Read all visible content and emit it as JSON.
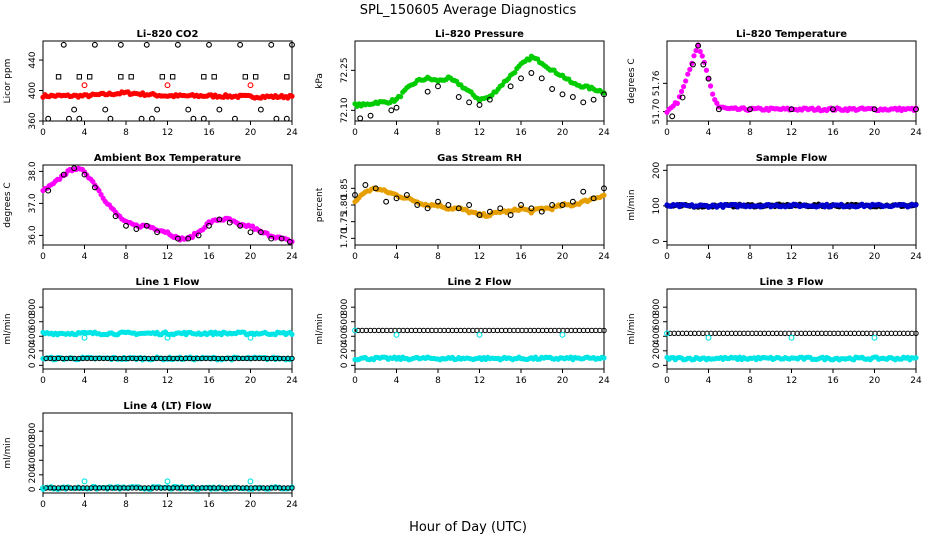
{
  "figure": {
    "title": "SPL_150605  Average Diagnostics",
    "xlabel": "Hour of Day (UTC)"
  },
  "chart_data": [
    {
      "type": "scatter",
      "title": "Li–820 CO2",
      "ylabel": "Licor ppm",
      "xlim": [
        0,
        24
      ],
      "ylim": [
        360,
        465
      ],
      "xticks": [
        "0",
        "4",
        "8",
        "12",
        "16",
        "20",
        "24"
      ],
      "yticks": [
        "360",
        "400",
        "440"
      ],
      "series": [
        {
          "style": "dense",
          "color": "#ff0000",
          "x": [
            0,
            4,
            8,
            12,
            16,
            20,
            24
          ],
          "y": [
            393,
            393,
            397,
            393,
            393,
            392,
            392
          ]
        },
        {
          "style": "open",
          "color": "#ff0000",
          "x": [
            4,
            12,
            20
          ],
          "y": [
            407,
            407,
            407
          ]
        },
        {
          "style": "open",
          "color": "#000000",
          "x": [
            2,
            3,
            5,
            6,
            7.5,
            10,
            11,
            13,
            14,
            16,
            17,
            19,
            21,
            22,
            24
          ],
          "y": [
            460,
            375,
            460,
            375,
            460,
            460,
            375,
            460,
            375,
            460,
            375,
            460,
            375,
            460,
            460
          ]
        },
        {
          "style": "square",
          "color": "#000000",
          "x": [
            1.5,
            3.5,
            4.5,
            7.5,
            8.5,
            11.5,
            12.5,
            15.5,
            16.5,
            19.5,
            20.5,
            23.5
          ],
          "y": [
            418,
            418,
            418,
            418,
            418,
            418,
            418,
            418,
            418,
            418,
            418,
            418
          ]
        },
        {
          "style": "open",
          "color": "#000000",
          "x": [
            0.5,
            2.5,
            3.5,
            6.5,
            9.5,
            10.5,
            14.5,
            15.5,
            18.5,
            22.5,
            23.5
          ],
          "y": [
            363,
            363,
            363,
            363,
            363,
            363,
            363,
            363,
            363,
            363,
            363
          ]
        }
      ]
    },
    {
      "type": "scatter",
      "title": "Li–820 Pressure",
      "ylabel": "kPa",
      "xlim": [
        0,
        24
      ],
      "ylim": [
        72.06,
        72.36
      ],
      "xticks": [
        "0",
        "4",
        "8",
        "12",
        "16",
        "20",
        "24"
      ],
      "yticks": [
        "72.10",
        "72.25"
      ],
      "series": [
        {
          "style": "dense",
          "color": "#00cc00",
          "x": [
            0,
            1,
            2,
            3,
            4,
            5,
            6,
            7,
            8,
            9,
            10,
            11,
            12,
            13,
            14,
            15,
            16,
            17,
            18,
            19,
            20,
            21,
            22,
            23,
            24
          ],
          "y": [
            72.12,
            72.12,
            72.13,
            72.13,
            72.14,
            72.18,
            72.21,
            72.22,
            72.21,
            72.22,
            72.2,
            72.17,
            72.14,
            72.15,
            72.19,
            72.23,
            72.27,
            72.3,
            72.28,
            72.25,
            72.23,
            72.2,
            72.19,
            72.18,
            72.17
          ]
        },
        {
          "style": "open",
          "color": "#000000",
          "x": [
            0.5,
            1.5,
            3.5,
            4,
            7,
            8,
            10,
            11,
            12,
            13,
            15,
            16,
            17,
            18,
            19,
            20,
            21,
            22,
            23,
            24
          ],
          "y": [
            72.07,
            72.08,
            72.1,
            72.11,
            72.17,
            72.19,
            72.15,
            72.13,
            72.12,
            72.14,
            72.19,
            72.22,
            72.24,
            72.22,
            72.18,
            72.16,
            72.15,
            72.13,
            72.14,
            72.16
          ]
        }
      ]
    },
    {
      "type": "scatter",
      "title": "Li–820 Temperature",
      "ylabel": "degrees C",
      "xlim": [
        0,
        24
      ],
      "ylim": [
        51.68,
        51.85
      ],
      "xticks": [
        "0",
        "4",
        "8",
        "12",
        "16",
        "20",
        "24"
      ],
      "yticks": [
        "51.70",
        "51.76"
      ],
      "series": [
        {
          "style": "dense",
          "color": "#ff00ff",
          "x": [
            0,
            1,
            1.5,
            2,
            2.5,
            3,
            3.5,
            4,
            4.5,
            5,
            6,
            8,
            12,
            16,
            20,
            24
          ],
          "y": [
            51.7,
            51.72,
            51.75,
            51.78,
            51.81,
            51.84,
            51.81,
            51.77,
            51.73,
            51.71,
            51.705,
            51.705,
            51.705,
            51.705,
            51.705,
            51.705
          ]
        },
        {
          "style": "open",
          "color": "#000000",
          "x": [
            0.5,
            1.5,
            2.5,
            3,
            3.5,
            4,
            5,
            8,
            12,
            16,
            20,
            24
          ],
          "y": [
            51.69,
            51.73,
            51.8,
            51.84,
            51.8,
            51.77,
            51.705,
            51.705,
            51.705,
            51.705,
            51.705,
            51.705
          ]
        }
      ]
    },
    {
      "type": "scatter",
      "title": "Ambient Box Temperature",
      "ylabel": "degrees C",
      "xlim": [
        0,
        24
      ],
      "ylim": [
        35.7,
        38.2
      ],
      "xticks": [
        "0",
        "4",
        "8",
        "12",
        "16",
        "20",
        "24"
      ],
      "yticks": [
        "36.0",
        "37.0",
        "38.0"
      ],
      "series": [
        {
          "style": "dense",
          "color": "#ff00ff",
          "x": [
            0,
            1,
            2,
            3,
            4,
            5,
            6,
            7,
            8,
            9,
            10,
            11,
            12,
            13,
            14,
            15,
            16,
            17,
            18,
            19,
            20,
            21,
            22,
            23,
            24
          ],
          "y": [
            37.4,
            37.6,
            37.9,
            38.1,
            38.0,
            37.6,
            37.1,
            36.7,
            36.4,
            36.3,
            36.3,
            36.2,
            36.1,
            35.9,
            35.9,
            36.1,
            36.4,
            36.5,
            36.5,
            36.3,
            36.3,
            36.1,
            36.0,
            35.9,
            35.8
          ]
        },
        {
          "style": "open",
          "color": "#000000",
          "x": [
            0.5,
            2,
            3,
            4,
            5,
            7,
            8,
            9,
            10,
            11,
            13,
            14,
            15,
            16,
            17,
            18,
            19,
            20,
            21,
            22,
            23,
            23.8
          ],
          "y": [
            37.4,
            37.9,
            38.1,
            37.9,
            37.5,
            36.6,
            36.3,
            36.2,
            36.3,
            36.1,
            35.9,
            35.9,
            36.0,
            36.3,
            36.5,
            36.4,
            36.3,
            36.1,
            36.1,
            35.9,
            35.9,
            35.8
          ]
        }
      ]
    },
    {
      "type": "scatter",
      "title": "Gas Stream RH",
      "ylabel": "percent",
      "xlim": [
        0,
        24
      ],
      "ylim": [
        1.68,
        1.92
      ],
      "xticks": [
        "0",
        "4",
        "8",
        "12",
        "16",
        "20",
        "24"
      ],
      "yticks": [
        "1.70",
        "1.75",
        "1.80",
        "1.85"
      ],
      "series": [
        {
          "style": "dense",
          "color": "#e69f00",
          "x": [
            0,
            1,
            2,
            3,
            4,
            5,
            6,
            7,
            8,
            9,
            10,
            11,
            12,
            13,
            14,
            15,
            16,
            17,
            18,
            19,
            20,
            21,
            22,
            23,
            24
          ],
          "y": [
            1.81,
            1.84,
            1.85,
            1.84,
            1.83,
            1.82,
            1.81,
            1.8,
            1.8,
            1.79,
            1.79,
            1.78,
            1.77,
            1.77,
            1.78,
            1.78,
            1.79,
            1.78,
            1.79,
            1.79,
            1.8,
            1.8,
            1.81,
            1.82,
            1.83
          ]
        },
        {
          "style": "open",
          "color": "#000000",
          "x": [
            0,
            1,
            2,
            3,
            4,
            5,
            6,
            7,
            8,
            9,
            10,
            11,
            12,
            13,
            14,
            15,
            16,
            17,
            18,
            19,
            20,
            21,
            22,
            23,
            24
          ],
          "y": [
            1.83,
            1.86,
            1.85,
            1.81,
            1.82,
            1.83,
            1.8,
            1.79,
            1.81,
            1.8,
            1.79,
            1.8,
            1.77,
            1.78,
            1.79,
            1.77,
            1.8,
            1.79,
            1.78,
            1.8,
            1.8,
            1.81,
            1.84,
            1.82,
            1.85
          ]
        }
      ]
    },
    {
      "type": "scatter",
      "title": "Sample Flow",
      "ylabel": "ml/min",
      "xlim": [
        0,
        24
      ],
      "ylim": [
        -10,
        215
      ],
      "xticks": [
        "0",
        "4",
        "8",
        "12",
        "16",
        "20",
        "24"
      ],
      "yticks": [
        "0",
        "100",
        "200"
      ],
      "series": [
        {
          "style": "dense",
          "color": "#000000",
          "x": [
            0,
            4,
            8,
            12,
            16,
            20,
            24
          ],
          "y": [
            100,
            100,
            101,
            101,
            101,
            101,
            101
          ]
        },
        {
          "style": "dense",
          "color": "#0000cc",
          "x": [
            0,
            4,
            8,
            12,
            16,
            20,
            24
          ],
          "y": [
            100,
            100,
            101,
            101,
            101,
            101,
            101
          ]
        }
      ]
    },
    {
      "type": "scatter",
      "title": "Line 1 Flow",
      "ylabel": "ml/min",
      "xlim": [
        0,
        24
      ],
      "ylim": [
        -50,
        1050
      ],
      "xticks": [
        "0",
        "4",
        "8",
        "12",
        "16",
        "20",
        "24"
      ],
      "yticks": [
        "0",
        "200",
        "400",
        "600",
        "800"
      ],
      "series": [
        {
          "style": "dense",
          "color": "#00e5e5",
          "x": [
            0,
            4,
            8,
            12,
            16,
            20,
            24
          ],
          "y": [
            440,
            440,
            440,
            440,
            440,
            440,
            440
          ]
        },
        {
          "style": "open",
          "color": "#00e5e5",
          "x": [
            4,
            12,
            20
          ],
          "y": [
            380,
            380,
            380
          ]
        },
        {
          "style": "dense",
          "color": "#00e5e5",
          "x": [
            0,
            4,
            8,
            12,
            16,
            20,
            24
          ],
          "y": [
            95,
            95,
            95,
            95,
            95,
            95,
            95
          ]
        },
        {
          "style": "chain",
          "color": "#000000",
          "x": [
            0.3,
            4,
            8,
            12,
            16,
            20,
            24
          ],
          "y": [
            95,
            95,
            95,
            95,
            95,
            95,
            95
          ]
        }
      ]
    },
    {
      "type": "scatter",
      "title": "Line 2 Flow",
      "ylabel": "ml/min",
      "xlim": [
        0,
        24
      ],
      "ylim": [
        -50,
        1050
      ],
      "xticks": [
        "0",
        "4",
        "8",
        "12",
        "16",
        "20",
        "24"
      ],
      "yticks": [
        "0",
        "200",
        "400",
        "600",
        "800"
      ],
      "series": [
        {
          "style": "dense",
          "color": "#00e5e5",
          "x": [
            0,
            4,
            8,
            12,
            16,
            20,
            24
          ],
          "y": [
            95,
            95,
            95,
            95,
            95,
            95,
            95
          ]
        },
        {
          "style": "chain",
          "color": "#000000",
          "x": [
            0.3,
            4,
            8,
            12,
            16,
            20,
            24
          ],
          "y": [
            480,
            480,
            480,
            480,
            480,
            480,
            480
          ]
        },
        {
          "style": "open",
          "color": "#00e5e5",
          "x": [
            0,
            4,
            12,
            20
          ],
          "y": [
            480,
            420,
            420,
            420
          ]
        }
      ]
    },
    {
      "type": "scatter",
      "title": "Line 3 Flow",
      "ylabel": "ml/min",
      "xlim": [
        0,
        24
      ],
      "ylim": [
        -50,
        1050
      ],
      "xticks": [
        "0",
        "4",
        "8",
        "12",
        "16",
        "20",
        "24"
      ],
      "yticks": [
        "0",
        "200",
        "400",
        "600",
        "800"
      ],
      "series": [
        {
          "style": "dense",
          "color": "#00e5e5",
          "x": [
            0,
            4,
            8,
            12,
            16,
            20,
            24
          ],
          "y": [
            95,
            95,
            95,
            95,
            95,
            95,
            95
          ]
        },
        {
          "style": "chain",
          "color": "#000000",
          "x": [
            0.3,
            4,
            8,
            12,
            16,
            20,
            24
          ],
          "y": [
            440,
            440,
            440,
            440,
            440,
            440,
            440
          ]
        },
        {
          "style": "open",
          "color": "#00e5e5",
          "x": [
            0,
            4,
            12,
            20
          ],
          "y": [
            440,
            380,
            380,
            380
          ]
        }
      ]
    },
    {
      "type": "scatter",
      "title": "Line 4 (LT) Flow",
      "ylabel": "ml/min",
      "xlim": [
        0,
        24
      ],
      "ylim": [
        -50,
        1050
      ],
      "xticks": [
        "0",
        "4",
        "8",
        "12",
        "16",
        "20",
        "24"
      ],
      "yticks": [
        "0",
        "200",
        "400",
        "600",
        "800"
      ],
      "series": [
        {
          "style": "dense",
          "color": "#00e5e5",
          "x": [
            0,
            4,
            8,
            12,
            16,
            20,
            24
          ],
          "y": [
            20,
            20,
            20,
            20,
            20,
            20,
            20
          ]
        },
        {
          "style": "chain",
          "color": "#000000",
          "x": [
            0.3,
            4,
            8,
            12,
            16,
            20,
            24
          ],
          "y": [
            20,
            20,
            20,
            20,
            20,
            20,
            20
          ]
        },
        {
          "style": "open",
          "color": "#00e5e5",
          "x": [
            0,
            4,
            12,
            20
          ],
          "y": [
            20,
            110,
            110,
            110
          ]
        }
      ]
    }
  ]
}
